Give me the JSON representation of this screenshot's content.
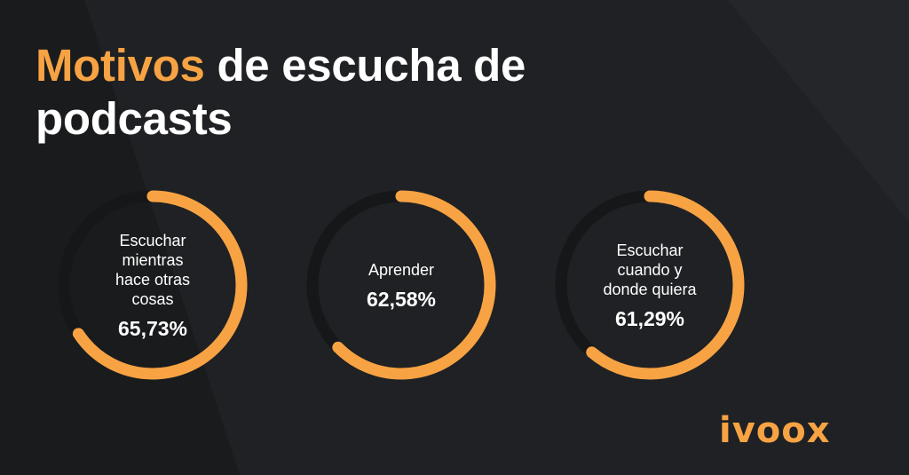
{
  "title": {
    "accent": "Motivos",
    "rest": " de escucha de podcasts"
  },
  "colors": {
    "background": "#1f2124",
    "accent": "#f7a344",
    "track": "#161718",
    "text": "#ffffff"
  },
  "chart_data": {
    "type": "donut",
    "title": "Motivos de escucha de podcasts",
    "unit": "%",
    "max": 100,
    "categories": [
      "Escuchar mientras hace otras cosas",
      "Aprender",
      "Escuchar cuando y donde quiera"
    ],
    "values": [
      65.73,
      62.58,
      61.29
    ],
    "labels": [
      "65,73%",
      "62,58%",
      "61,29%"
    ],
    "label_lines": [
      [
        "Escuchar",
        "mientras",
        "hace otras",
        "cosas"
      ],
      [
        "Aprender"
      ],
      [
        "Escuchar",
        "cuando y",
        "donde quiera"
      ]
    ]
  },
  "brand": {
    "logo_text": "ivoox",
    "logo_icon": "ivoox-wordmark"
  }
}
